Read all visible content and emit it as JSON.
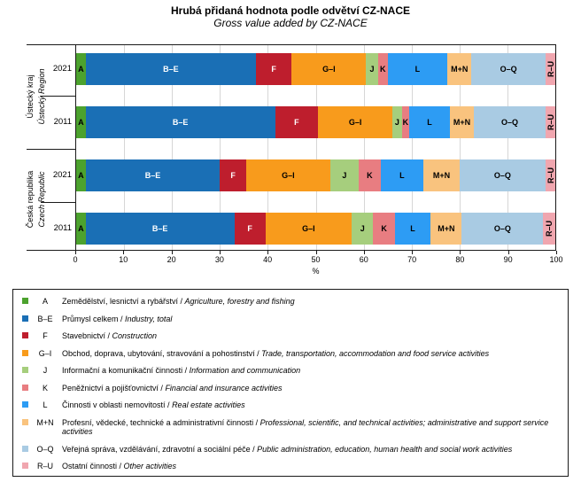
{
  "title": "Hrubá přidaná hodnota podle odvětví CZ-NACE",
  "subtitle": "Gross value added by CZ-NACE",
  "chart_data": {
    "type": "bar",
    "orientation": "horizontal",
    "stacked": true,
    "title": "Hrubá přidaná hodnota podle odvětví CZ-NACE",
    "subtitle": "Gross value added by CZ-NACE",
    "xlabel": "%",
    "xlim": [
      0,
      100
    ],
    "xticks": [
      0,
      10,
      20,
      30,
      40,
      50,
      60,
      70,
      80,
      90,
      100
    ],
    "grid": "vertical",
    "legend_position": "bottom",
    "categories": [
      "Ústecký kraj 2021",
      "Ústecký kraj 2011",
      "Česká republika 2021",
      "Česká republika 2011"
    ],
    "groups": [
      {
        "name_cs": "Ústecký kraj",
        "name_en": "Ústecký Region",
        "years": [
          "2021",
          "2011"
        ]
      },
      {
        "name_cs": "Česká republika",
        "name_en": "Czech Republic",
        "years": [
          "2021",
          "2011"
        ]
      }
    ],
    "series": [
      {
        "name": "A",
        "color": "#4CA22E",
        "label_color": "#000000",
        "rotated": false,
        "values": [
          2,
          2,
          2,
          2
        ]
      },
      {
        "name": "B–E",
        "color": "#1A6FB5",
        "label_color": "#ffffff",
        "rotated": false,
        "values": [
          35.5,
          39.5,
          28,
          31
        ]
      },
      {
        "name": "F",
        "color": "#BE1E2D",
        "label_color": "#ffffff",
        "rotated": false,
        "values": [
          7.5,
          9,
          5.5,
          6.5
        ]
      },
      {
        "name": "G–I",
        "color": "#F89B1C",
        "label_color": "#000000",
        "rotated": false,
        "values": [
          15.5,
          15.5,
          17.5,
          18
        ]
      },
      {
        "name": "J",
        "color": "#A6CE7D",
        "label_color": "#000000",
        "rotated": false,
        "values": [
          2.5,
          2,
          6,
          4.5
        ]
      },
      {
        "name": "K",
        "color": "#E87D81",
        "label_color": "#000000",
        "rotated": false,
        "values": [
          2,
          1.5,
          4.5,
          4.5
        ]
      },
      {
        "name": "L",
        "color": "#2D9CF4",
        "label_color": "#000000",
        "rotated": false,
        "values": [
          12.5,
          8.5,
          9,
          7.5
        ]
      },
      {
        "name": "M+N",
        "color": "#F9C37E",
        "label_color": "#000000",
        "rotated": false,
        "values": [
          5,
          5,
          7.5,
          6.5
        ]
      },
      {
        "name": "O–Q",
        "color": "#A9CBE3",
        "label_color": "#000000",
        "rotated": false,
        "values": [
          15.5,
          15,
          18,
          17
        ]
      },
      {
        "name": "R–U",
        "color": "#F0A6AF",
        "label_color": "#000000",
        "rotated": true,
        "values": [
          2,
          2,
          2,
          2.5
        ]
      }
    ]
  },
  "legend": {
    "items": [
      {
        "code": "A",
        "cs": "Zemědělství, lesnictví a rybářství",
        "en": "Agriculture, forestry and fishing"
      },
      {
        "code": "B–E",
        "cs": "Průmysl celkem",
        "en": "Industry, total"
      },
      {
        "code": "F",
        "cs": "Stavebnictví",
        "en": "Construction"
      },
      {
        "code": "G–I",
        "cs": "Obchod, doprava, ubytování, stravování a pohostinství",
        "en": "Trade, transportation, accommodation and food service activities"
      },
      {
        "code": "J",
        "cs": "Informační a komunikační činnosti",
        "en": "Information and communication"
      },
      {
        "code": "K",
        "cs": "Peněžnictví a pojišťovnictví",
        "en": "Financial and insurance activities"
      },
      {
        "code": "L",
        "cs": "Činnosti v oblasti nemovitostí",
        "en": "Real estate activities"
      },
      {
        "code": "M+N",
        "cs": "Profesní, vědecké, technické a administrativní činnosti",
        "en": "Professional, scientific, and technical activities; administrative and support service activities"
      },
      {
        "code": "O–Q",
        "cs": "Veřejná správa, vzdělávání, zdravotní a sociální péče",
        "en": "Public administration, education, human health and social work activities"
      },
      {
        "code": "R–U",
        "cs": "Ostatní činnosti",
        "en": "Other activities"
      }
    ]
  }
}
